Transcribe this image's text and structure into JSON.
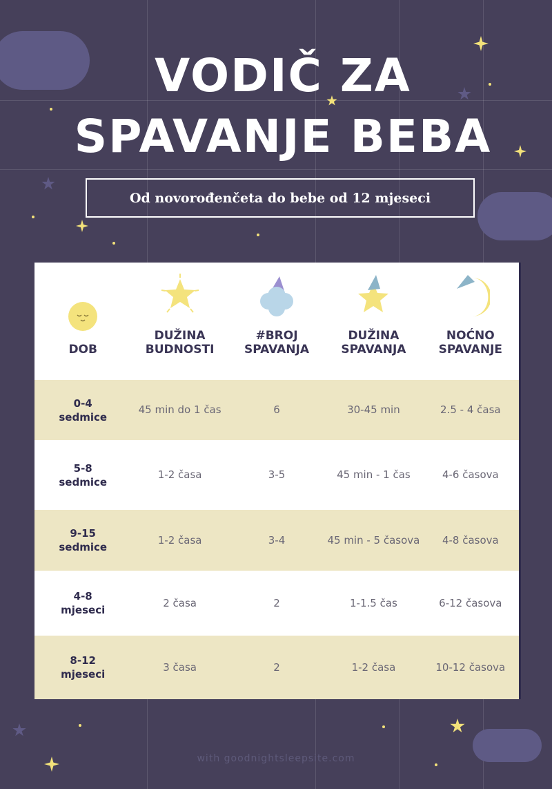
{
  "title_line1": "VODIČ ZA",
  "title_line2": "SPAVANJE BEBA",
  "subtitle": "Od novorođenčeta do bebe od 12 mjeseci",
  "table": {
    "headers": [
      {
        "l1": "DOB",
        "l2": "",
        "icon": "smiling-moon-face-icon"
      },
      {
        "l1": "DUŽINA",
        "l2": "BUDNOSTI",
        "icon": "shining-star-icon"
      },
      {
        "l1": "#BROJ",
        "l2": "SPAVANJA",
        "icon": "sleeping-cloud-icon"
      },
      {
        "l1": "DUŽINA",
        "l2": "SPAVANJA",
        "icon": "sleeping-star-icon"
      },
      {
        "l1": "NOĆNO",
        "l2": "SPAVANJE",
        "icon": "crescent-moon-icon"
      }
    ],
    "rows": [
      {
        "age1": "0-4",
        "age2": "sedmice",
        "awake": "45 min do 1 čas",
        "naps": "6",
        "nap_len": "30-45 min",
        "night": "2.5 - 4 časa"
      },
      {
        "age1": "5-8",
        "age2": "sedmice",
        "awake": "1-2 časa",
        "naps": "3-5",
        "nap_len": "45 min - 1 čas",
        "night": "4-6 časova"
      },
      {
        "age1": "9-15",
        "age2": "sedmice",
        "awake": "1-2 časa",
        "naps": "3-4",
        "nap_len": "45 min - 5 časova",
        "night": "4-8 časova"
      },
      {
        "age1": "4-8",
        "age2": "mjeseci",
        "awake": "2 časa",
        "naps": "2",
        "nap_len": "1-1.5 čas",
        "night": "6-12 časova"
      },
      {
        "age1": "8-12",
        "age2": "mjeseci",
        "awake": "3 časa",
        "naps": "2",
        "nap_len": "1-2 časa",
        "night": "10-12 časova"
      }
    ]
  },
  "footer": "with goodnightsleepsite.com",
  "colors": {
    "background": "#46405a",
    "row_highlight": "#ede6c4",
    "star": "#f3e27a",
    "cloud": "#5e5a85"
  }
}
